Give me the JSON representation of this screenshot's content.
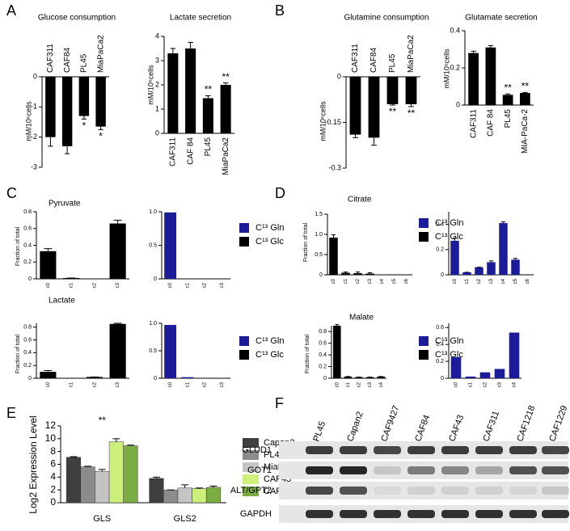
{
  "panels": [
    "A",
    "B",
    "C",
    "D",
    "E",
    "F"
  ],
  "chart_data": [
    {
      "type": "bar",
      "title": "Glucose consumption",
      "ylabel": "mM/10⁶cells",
      "categories": [
        "CAF311",
        "CAF84",
        "PL45",
        "MiaPaCa2"
      ],
      "values": [
        -2.0,
        -2.3,
        -1.3,
        -1.65
      ],
      "errors": [
        0.3,
        0.25,
        0.1,
        0.1
      ],
      "color": "#000000",
      "ylim": [
        -3,
        0
      ],
      "yticks": [
        0,
        -1,
        -2,
        -3
      ],
      "annotations": [
        {
          "text": "*",
          "category": "PL45"
        },
        {
          "text": "*",
          "category": "MiaPaCa2"
        }
      ]
    },
    {
      "type": "bar",
      "title": "Lactate secretion",
      "ylabel": "mM/10⁶cells",
      "categories": [
        "CAF311",
        "CAF 84",
        "PL45",
        "MiaPaCa2"
      ],
      "values": [
        3.3,
        3.5,
        1.45,
        2.0
      ],
      "errors": [
        0.2,
        0.25,
        0.1,
        0.08
      ],
      "color": "#000000",
      "ylim": [
        0,
        4
      ],
      "yticks": [
        0,
        1,
        2,
        3,
        4
      ],
      "annotations": [
        {
          "text": "**",
          "category": "PL45"
        },
        {
          "text": "**",
          "category": "MiaPaCa2"
        }
      ]
    },
    {
      "type": "bar",
      "title": "Glutamine consumption",
      "ylabel": "mM/10⁶cells",
      "categories": [
        "CAF311",
        "CAF84",
        "PL45",
        "MiaPaCa2"
      ],
      "values": [
        -0.19,
        -0.2,
        -0.09,
        -0.09
      ],
      "errors": [
        0.01,
        0.025,
        0.003,
        0.008
      ],
      "color": "#000000",
      "ylim": [
        -0.3,
        0
      ],
      "yticks": [
        0,
        -0.15,
        -0.3
      ],
      "annotations": [
        {
          "text": "**",
          "category": "PL45"
        },
        {
          "text": "**",
          "category": "MiaPaCa2"
        }
      ]
    },
    {
      "type": "bar",
      "title": "Glutamate secretion",
      "ylabel": "mM/10⁶cells",
      "categories": [
        "CAF311",
        "CAF 84",
        "PL45",
        "MIA-PaCa-2"
      ],
      "values": [
        0.28,
        0.31,
        0.055,
        0.065
      ],
      "errors": [
        0.01,
        0.01,
        0.005,
        0.003
      ],
      "color": "#000000",
      "ylim": [
        0,
        0.4
      ],
      "yticks": [
        0,
        0.2,
        0.4
      ],
      "annotations": [
        {
          "text": "**",
          "category": "PL45"
        },
        {
          "text": "**",
          "category": "MIA-PaCa-2"
        }
      ]
    },
    {
      "type": "bar",
      "title": "Pyruvate",
      "ylabel": "Fraction of total",
      "categories": [
        "c0",
        "c1",
        "c2",
        "c3"
      ],
      "values": [
        0.33,
        0.01,
        0,
        0.66
      ],
      "errors": [
        0.03,
        0,
        0,
        0.04
      ],
      "color": "#000000",
      "ylim": [
        0,
        0.8
      ],
      "yticks": [
        0,
        0.2,
        0.4,
        0.6,
        0.8
      ],
      "legend": [
        {
          "name": "C¹³ Gln",
          "color": "#1c1c9a"
        },
        {
          "name": "C¹³ Glc",
          "color": "#000000"
        }
      ]
    },
    {
      "type": "bar",
      "categories": [
        "c0",
        "c1",
        "c2",
        "c3"
      ],
      "values": [
        0.99,
        0,
        0,
        0
      ],
      "color": "#1c1c9a",
      "ylim": [
        0,
        1
      ],
      "yticks": [
        0,
        0.5,
        {
          "value": 1,
          "label": "1.0"
        }
      ]
    },
    {
      "type": "bar",
      "title": "Lactate",
      "ylabel": "Fraction of total",
      "categories": [
        "c0",
        "c1",
        "c2",
        "c3"
      ],
      "values": [
        0.1,
        0,
        0.02,
        0.85
      ],
      "errors": [
        0.02,
        0,
        0,
        0.01
      ],
      "color": "#000000",
      "ylim": [
        0,
        0.86
      ],
      "yticks": [
        0,
        0.2,
        0.4,
        0.6,
        0.8
      ],
      "legend": [
        {
          "name": "C¹³ Gln",
          "color": "#1c1c9a"
        },
        {
          "name": "C¹³ Glc",
          "color": "#000000"
        }
      ]
    },
    {
      "type": "bar",
      "categories": [
        "c0",
        "c1",
        "c2",
        "c3"
      ],
      "values": [
        0.97,
        0.02,
        0,
        0
      ],
      "color": "#1c1c9a",
      "ylim": [
        0,
        1
      ],
      "yticks": [
        0,
        0.5,
        {
          "value": 1,
          "label": "1.0"
        }
      ]
    },
    {
      "type": "bar",
      "title": "Citrate",
      "ylabel": "Fraction of total",
      "categories": [
        "c0",
        "c1",
        "c2",
        "c3",
        "c4",
        "c5",
        "c6"
      ],
      "values": [
        0.92,
        0.05,
        0.04,
        0.03,
        0,
        0,
        0
      ],
      "errors": [
        0.07,
        0.02,
        0.03,
        0.02,
        0,
        0,
        0
      ],
      "color": "#000000",
      "ylim": [
        0,
        1.5
      ],
      "yticks": [
        0,
        0.5,
        {
          "value": 1,
          "label": "1.0"
        },
        1.5
      ],
      "legend": [
        {
          "name": "C¹³ Gln",
          "color": "#1c1c9a"
        },
        {
          "name": "C¹³ Glc",
          "color": "#000000"
        }
      ]
    },
    {
      "type": "bar",
      "categories": [
        "c0",
        "c1",
        "c2",
        "c3",
        "c4",
        "c5",
        "c6"
      ],
      "values": [
        0.27,
        0.02,
        0.06,
        0.1,
        0.41,
        0.12,
        0
      ],
      "errors": [
        0.02,
        0,
        0,
        0.01,
        0.01,
        0.01,
        0
      ],
      "color": "#1c1c9a",
      "ylim": [
        0,
        0.5
      ],
      "yticks": [
        0,
        0.2,
        0.4
      ]
    },
    {
      "type": "bar",
      "title": "Malate",
      "ylabel": "Fraction of total",
      "categories": [
        "c0",
        "c1",
        "c2",
        "c3",
        "c4"
      ],
      "values": [
        0.9,
        0.03,
        0.02,
        0.02,
        0.03
      ],
      "errors": [
        0.02,
        0,
        0,
        0,
        0
      ],
      "color": "#000000",
      "ylim": [
        0,
        0.9
      ],
      "yticks": [
        0,
        0.2,
        0.4,
        0.6,
        0.8
      ],
      "legend": [
        {
          "name": "C¹³ Gln",
          "color": "#1c1c9a"
        },
        {
          "name": "C¹³ Glc",
          "color": "#000000"
        }
      ]
    },
    {
      "type": "bar",
      "categories": [
        "c0",
        "c1",
        "c2",
        "c3",
        "c4"
      ],
      "values": [
        0.25,
        0.02,
        0.07,
        0.11,
        0.54
      ],
      "color": "#1c1c9a",
      "ylim": [
        0,
        0.65
      ],
      "yticks": [
        0,
        0.2,
        0.4,
        0.6
      ]
    },
    {
      "type": "bar",
      "ylabel": "Log2 Expression Level",
      "categories": [
        "GLS",
        "GLS2"
      ],
      "series": [
        {
          "name": "Capan2",
          "color": "#3f3f3f",
          "values": [
            7.1,
            3.8
          ],
          "errors": [
            0.1,
            0.2
          ]
        },
        {
          "name": "PL45",
          "color": "#8c8c8c",
          "values": [
            5.6,
            2.0
          ],
          "errors": [
            0.1,
            0
          ]
        },
        {
          "name": "MiaPaCa2",
          "color": "#c4c4c4",
          "values": [
            4.9,
            2.3
          ],
          "errors": [
            0.3,
            0.5
          ]
        },
        {
          "name": "CAF43",
          "color": "#cdf07a",
          "values": [
            9.5,
            2.2
          ],
          "errors": [
            0.5,
            0.1
          ]
        },
        {
          "name": "CAF311",
          "color": "#7cad44",
          "values": [
            8.9,
            2.4
          ],
          "errors": [
            0.1,
            0.2
          ]
        }
      ],
      "ylim": [
        0,
        12
      ],
      "yticks": [
        0,
        2,
        4,
        6,
        8,
        10,
        12
      ],
      "annotations": [
        {
          "text": "**",
          "category": "GLS"
        }
      ]
    }
  ],
  "blot": {
    "lanes": [
      "PL45",
      "Capan2",
      "CAF9427",
      "CAF84",
      "CAF43",
      "CAF311",
      "CAF1218",
      "CAF1229"
    ],
    "proteins": [
      "GLUD1",
      "GOT1",
      "ALT/GPT2",
      "GAPDH"
    ]
  }
}
